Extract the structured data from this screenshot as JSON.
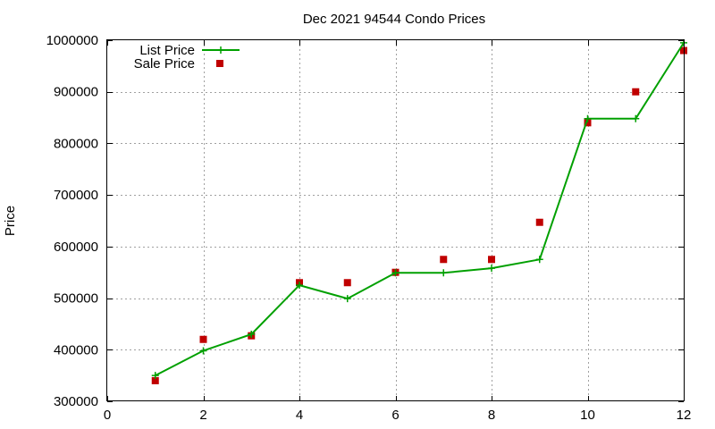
{
  "chart_data": {
    "type": "line",
    "title": "Dec 2021 94544 Condo Prices",
    "xlabel": "",
    "ylabel": "Price",
    "xlim": [
      0,
      12
    ],
    "ylim": [
      300000,
      1000000
    ],
    "xticks": [
      0,
      2,
      4,
      6,
      8,
      10,
      12
    ],
    "yticks": [
      300000,
      400000,
      500000,
      600000,
      700000,
      800000,
      900000,
      1000000
    ],
    "grid": true,
    "legend_position": "top-left",
    "series": [
      {
        "name": "List Price",
        "style": "line+cross",
        "color": "#00a000",
        "x": [
          1,
          2,
          3,
          4,
          5,
          6,
          7,
          8,
          9,
          10,
          11,
          12
        ],
        "y": [
          350000,
          398000,
          430000,
          525000,
          499000,
          549000,
          549000,
          558000,
          575000,
          848000,
          848000,
          995000
        ]
      },
      {
        "name": "Sale Price",
        "style": "square",
        "color": "#c00000",
        "x": [
          1,
          2,
          3,
          4,
          5,
          6,
          7,
          8,
          9,
          10,
          11,
          12
        ],
        "y": [
          340000,
          420000,
          427000,
          530000,
          530000,
          550000,
          575000,
          575000,
          647000,
          840000,
          900000,
          980000
        ]
      }
    ]
  }
}
